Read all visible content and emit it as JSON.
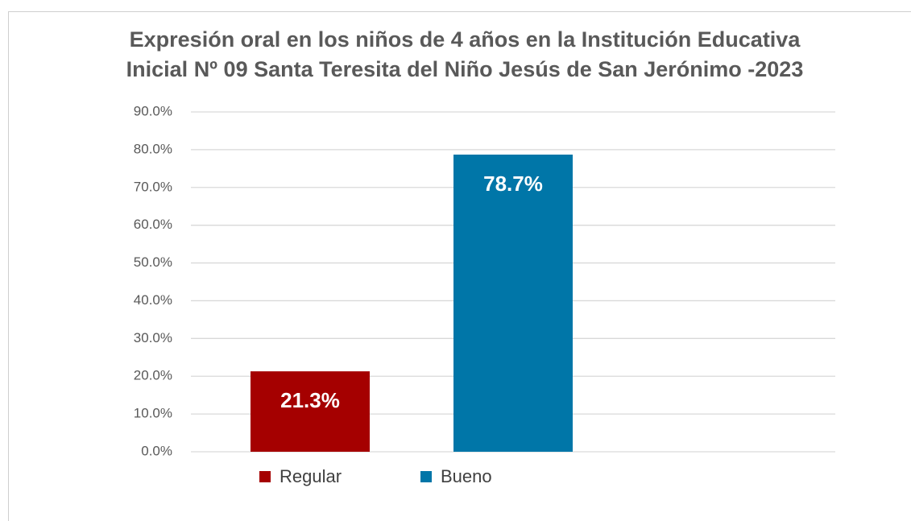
{
  "chart_data": {
    "type": "bar",
    "title": "Expresión oral en los niños de 4 años en la Institución Educativa Inicial Nº 09 Santa Teresita del Niño Jesús de San Jerónimo -2023",
    "categories": [
      "Regular",
      "Bueno"
    ],
    "values": [
      21.3,
      78.7
    ],
    "value_labels": [
      "21.3%",
      "78.7%"
    ],
    "colors": [
      "#a50000",
      "#0076a8"
    ],
    "ylim": [
      0,
      90
    ],
    "yticks": [
      {
        "value": 0,
        "label": "0.0%"
      },
      {
        "value": 10,
        "label": "10.0%"
      },
      {
        "value": 20,
        "label": "20.0%"
      },
      {
        "value": 30,
        "label": "30.0%"
      },
      {
        "value": 40,
        "label": "40.0%"
      },
      {
        "value": 50,
        "label": "50.0%"
      },
      {
        "value": 60,
        "label": "60.0%"
      },
      {
        "value": 70,
        "label": "70.0%"
      },
      {
        "value": 80,
        "label": "80.0%"
      },
      {
        "value": 90,
        "label": "90.0%"
      }
    ],
    "grid": true,
    "legend": "bottom"
  }
}
